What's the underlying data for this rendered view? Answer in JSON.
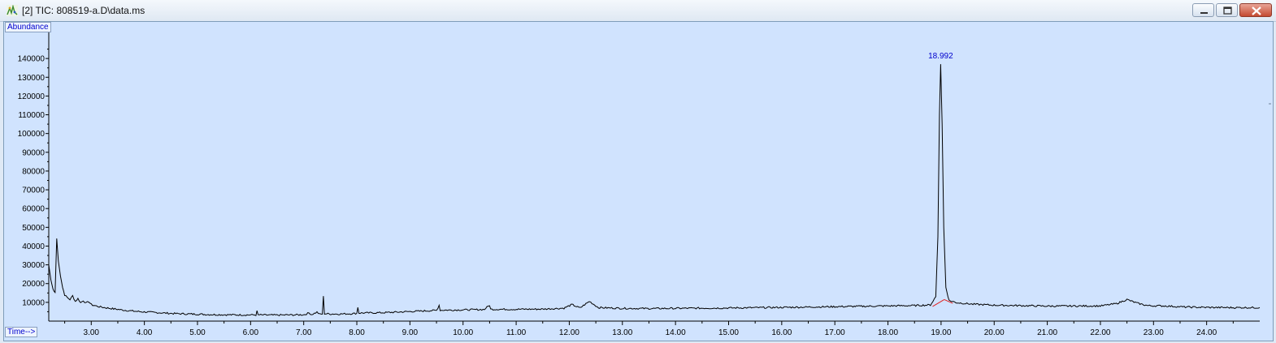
{
  "window": {
    "title": "[2] TIC: 808519-a.D\\data.ms",
    "controls": {
      "minimize": "minimize-icon",
      "maximize": "maximize-icon",
      "close": "close-icon"
    }
  },
  "colors": {
    "plot_background": "#d0e3fe",
    "trace": "#000000",
    "peak_label": "#0000cc",
    "baseline": "#e02020"
  },
  "chart_data": {
    "type": "line",
    "ylabel": "Abundance",
    "xlabel": "Time-->",
    "xlim": [
      2.2,
      25.0
    ],
    "ylim": [
      0,
      150000
    ],
    "x_ticks": [
      "3.00",
      "4.00",
      "5.00",
      "6.00",
      "7.00",
      "8.00",
      "9.00",
      "10.00",
      "11.00",
      "12.00",
      "13.00",
      "14.00",
      "15.00",
      "16.00",
      "17.00",
      "18.00",
      "19.00",
      "20.00",
      "21.00",
      "22.00",
      "23.00",
      "24.00"
    ],
    "y_ticks": [
      "10000",
      "20000",
      "30000",
      "40000",
      "50000",
      "60000",
      "70000",
      "80000",
      "90000",
      "100000",
      "110000",
      "120000",
      "130000",
      "140000"
    ],
    "x_tick_values": [
      3,
      4,
      5,
      6,
      7,
      8,
      9,
      10,
      11,
      12,
      13,
      14,
      15,
      16,
      17,
      18,
      19,
      20,
      21,
      22,
      23,
      24
    ],
    "y_tick_values": [
      10000,
      20000,
      30000,
      40000,
      50000,
      60000,
      70000,
      80000,
      90000,
      100000,
      110000,
      120000,
      130000,
      140000
    ],
    "series": [
      {
        "points": [
          [
            2.2,
            30000
          ],
          [
            2.24,
            22000
          ],
          [
            2.28,
            17000
          ],
          [
            2.32,
            15500
          ],
          [
            2.35,
            44000
          ],
          [
            2.38,
            32000
          ],
          [
            2.42,
            24000
          ],
          [
            2.46,
            18000
          ],
          [
            2.5,
            14000
          ],
          [
            2.55,
            12500
          ],
          [
            2.6,
            11500
          ],
          [
            2.65,
            13500
          ],
          [
            2.7,
            10500
          ],
          [
            2.75,
            12000
          ],
          [
            2.8,
            9800
          ],
          [
            2.85,
            11000
          ],
          [
            2.9,
            9500
          ],
          [
            2.95,
            10500
          ],
          [
            3.0,
            8800
          ],
          [
            3.1,
            8000
          ],
          [
            3.2,
            7400
          ],
          [
            3.4,
            6600
          ],
          [
            3.6,
            5900
          ],
          [
            3.8,
            5300
          ],
          [
            4.0,
            4900
          ],
          [
            4.2,
            4600
          ],
          [
            4.5,
            4100
          ],
          [
            4.8,
            3800
          ],
          [
            5.0,
            3700
          ],
          [
            5.2,
            3500
          ],
          [
            5.5,
            3400
          ],
          [
            5.8,
            3300
          ],
          [
            6.0,
            3300
          ],
          [
            6.1,
            3300
          ],
          [
            6.12,
            5200
          ],
          [
            6.14,
            3300
          ],
          [
            6.4,
            3200
          ],
          [
            6.8,
            3300
          ],
          [
            7.0,
            3400
          ],
          [
            7.1,
            4300
          ],
          [
            7.15,
            3500
          ],
          [
            7.25,
            4800
          ],
          [
            7.3,
            3600
          ],
          [
            7.35,
            3800
          ],
          [
            7.37,
            13000
          ],
          [
            7.39,
            4000
          ],
          [
            7.5,
            3800
          ],
          [
            7.7,
            3800
          ],
          [
            8.0,
            4100
          ],
          [
            8.02,
            7500
          ],
          [
            8.04,
            4300
          ],
          [
            8.5,
            4500
          ],
          [
            9.0,
            5100
          ],
          [
            9.5,
            5700
          ],
          [
            9.55,
            8500
          ],
          [
            9.57,
            5800
          ],
          [
            10.0,
            6000
          ],
          [
            10.4,
            6200
          ],
          [
            10.5,
            8500
          ],
          [
            10.52,
            6300
          ],
          [
            11.0,
            6300
          ],
          [
            11.5,
            6400
          ],
          [
            11.9,
            6900
          ],
          [
            12.05,
            8800
          ],
          [
            12.2,
            7000
          ],
          [
            12.38,
            10500
          ],
          [
            12.55,
            7200
          ],
          [
            13.0,
            6800
          ],
          [
            13.5,
            6700
          ],
          [
            14.0,
            6800
          ],
          [
            15.0,
            7000
          ],
          [
            16.0,
            7300
          ],
          [
            17.0,
            7700
          ],
          [
            18.0,
            8100
          ],
          [
            18.5,
            8300
          ],
          [
            18.8,
            8600
          ],
          [
            18.9,
            13000
          ],
          [
            18.94,
            45000
          ],
          [
            18.97,
            110000
          ],
          [
            18.992,
            137000
          ],
          [
            19.02,
            105000
          ],
          [
            19.05,
            50000
          ],
          [
            19.09,
            18000
          ],
          [
            19.15,
            11000
          ],
          [
            19.3,
            9800
          ],
          [
            19.6,
            9000
          ],
          [
            20.0,
            8500
          ],
          [
            21.0,
            8000
          ],
          [
            22.0,
            8100
          ],
          [
            22.3,
            9300
          ],
          [
            22.5,
            11500
          ],
          [
            22.7,
            9500
          ],
          [
            22.9,
            8200
          ],
          [
            23.2,
            8100
          ],
          [
            23.6,
            7500
          ],
          [
            24.0,
            7300
          ],
          [
            24.5,
            7200
          ],
          [
            25.0,
            7200
          ]
        ]
      }
    ],
    "peak_labels": [
      {
        "x": 18.992,
        "y": 137000,
        "text": "18.992"
      }
    ],
    "baseline_segments": [
      [
        [
          18.84,
          7800
        ],
        [
          19.06,
          11500
        ]
      ],
      [
        [
          19.06,
          11500
        ],
        [
          19.22,
          9500
        ]
      ]
    ]
  }
}
